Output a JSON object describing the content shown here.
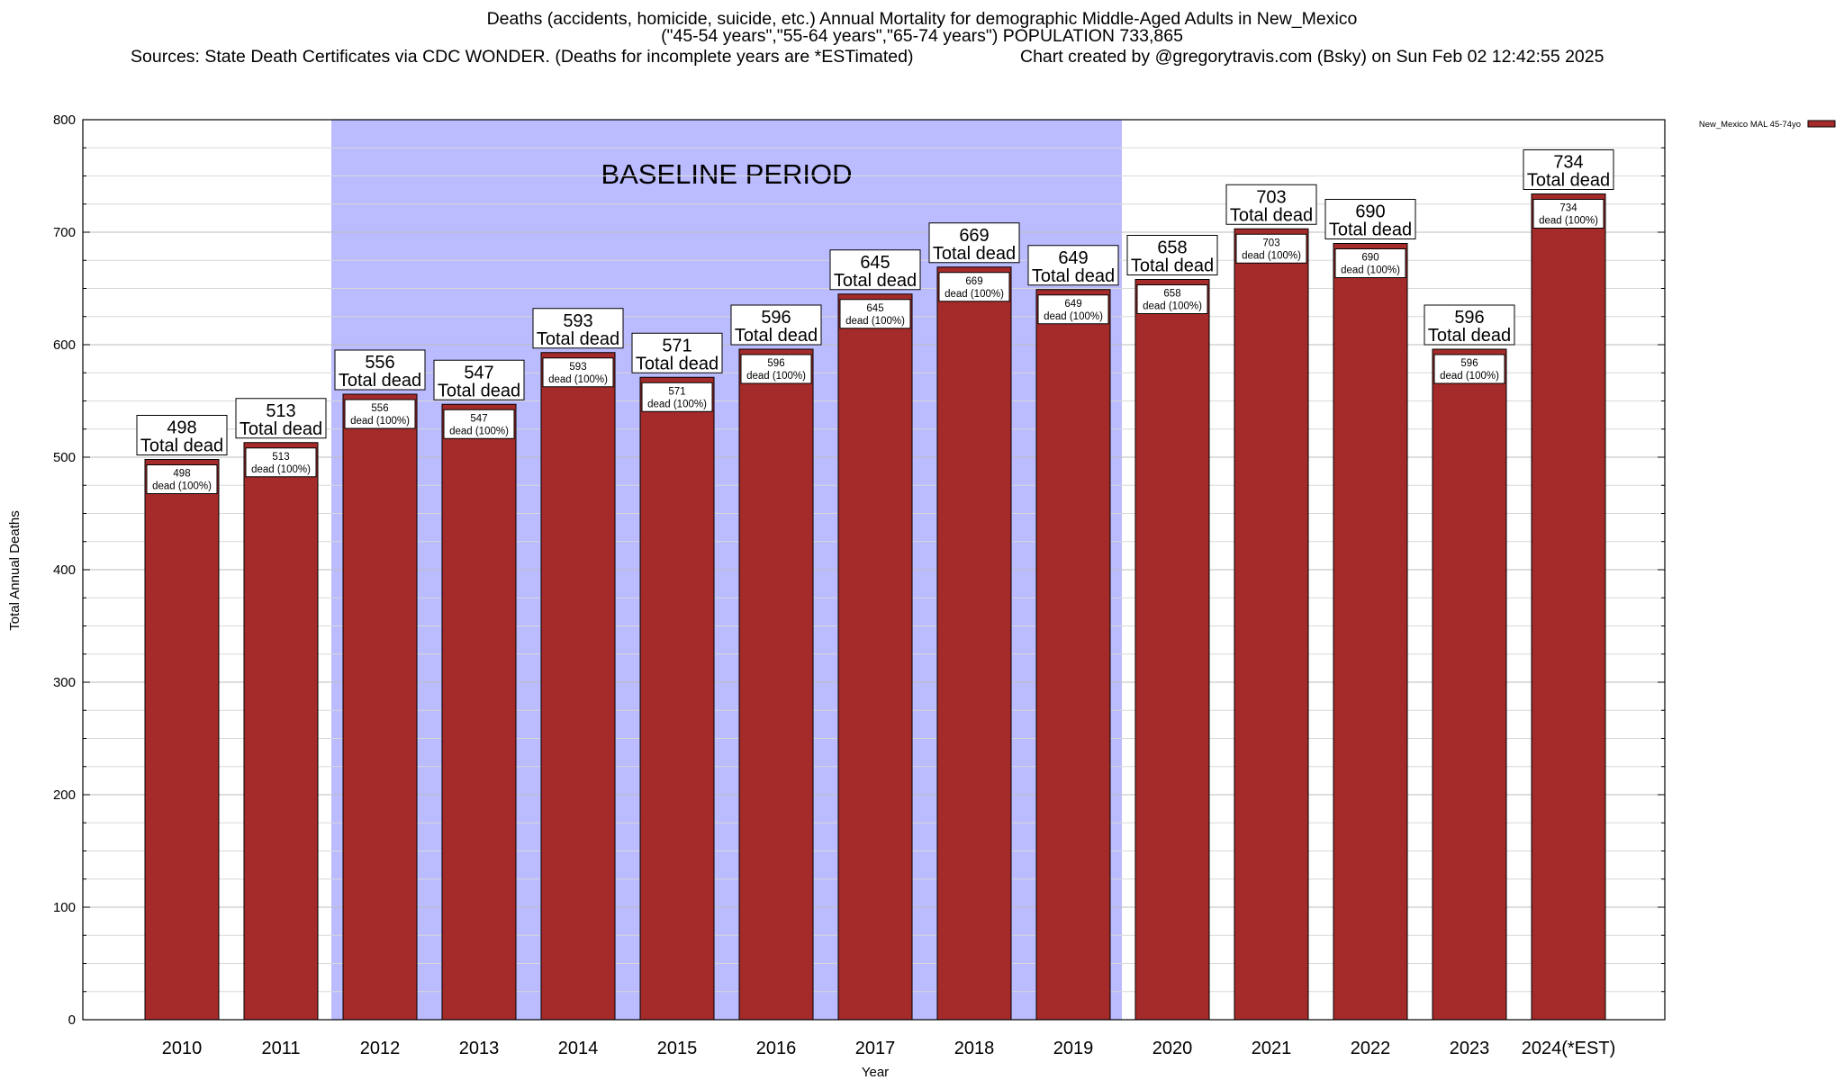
{
  "title": {
    "line1": "Deaths (accidents, homicide, suicide, etc.) Annual Mortality for demographic Middle-Aged Adults in New_Mexico",
    "line2": "(\"45-54 years\",\"55-64 years\",\"65-74 years\") POPULATION 733,865",
    "sources": "Sources: State Death Certificates via CDC WONDER. (Deaths for incomplete years are *ESTimated)",
    "credit": "Chart created by @gregorytravis.com (Bsky) on Sun Feb 02 12:42:55 2025"
  },
  "chart_data": {
    "type": "bar",
    "title": "Deaths (accidents, homicide, suicide, etc.) Annual Mortality for demographic Middle-Aged Adults in New_Mexico",
    "xlabel": "Year",
    "ylabel": "Total Annual Deaths",
    "ylim": [
      0,
      800
    ],
    "yticks": [
      0,
      100,
      200,
      300,
      400,
      500,
      600,
      700,
      800
    ],
    "grid": true,
    "legend_position": "top-right",
    "categories": [
      "2010",
      "2011",
      "2012",
      "2013",
      "2014",
      "2015",
      "2016",
      "2017",
      "2018",
      "2019",
      "2020",
      "2021",
      "2022",
      "2023",
      "2024(*EST)"
    ],
    "series": [
      {
        "name": "New_Mexico MAL 45-74yo",
        "color": "#a52a2a",
        "values": [
          498,
          513,
          556,
          547,
          593,
          571,
          596,
          645,
          669,
          649,
          658,
          703,
          690,
          596,
          734
        ]
      }
    ],
    "bar_label_suffix": "Total dead",
    "inner_label_text": "dead (100%)",
    "baseline_region": {
      "label": "BASELINE PERIOD",
      "start_category": "2012",
      "end_category": "2019",
      "color": "#bbbbff"
    }
  }
}
